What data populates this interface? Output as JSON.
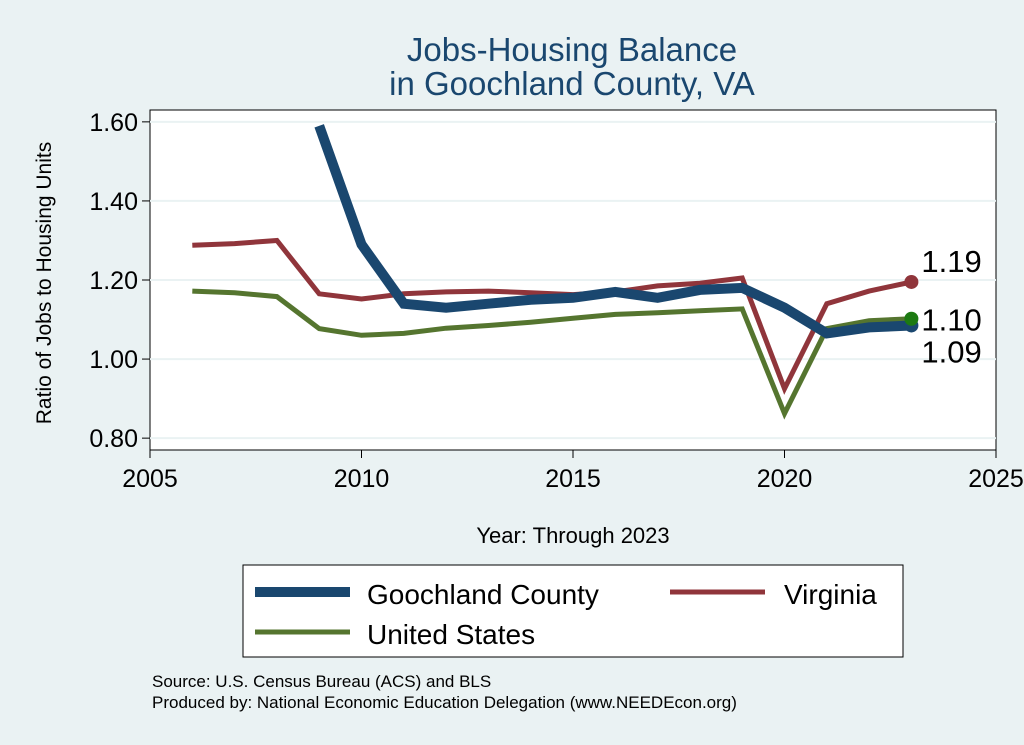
{
  "chart_data": {
    "type": "line",
    "title": [
      "Jobs-Housing Balance",
      "in Goochland County, VA"
    ],
    "xlabel": "Year: Through 2023",
    "ylabel": "Ratio of Jobs to Housing Units",
    "xlim": [
      2005,
      2025
    ],
    "ylim": [
      0.77,
      1.63
    ],
    "x_ticks": [
      2005,
      2010,
      2015,
      2020,
      2025
    ],
    "y_ticks": [
      0.8,
      1.0,
      1.2,
      1.4,
      1.6
    ],
    "y_tick_labels": [
      "0.80",
      "1.00",
      "1.20",
      "1.40",
      "1.60"
    ],
    "grid": true,
    "legend_position": "bottom",
    "series": [
      {
        "name": "Goochland County",
        "color": "#1a476f",
        "x": [
          2009,
          2010,
          2011,
          2012,
          2013,
          2014,
          2015,
          2016,
          2017,
          2018,
          2019,
          2020,
          2021,
          2022,
          2023
        ],
        "y": [
          1.59,
          1.29,
          1.14,
          1.13,
          1.14,
          1.15,
          1.155,
          1.17,
          1.155,
          1.175,
          1.18,
          1.13,
          1.065,
          1.08,
          1.085
        ],
        "end_label": "1.09"
      },
      {
        "name": "Virginia",
        "color": "#90353b",
        "x": [
          2006,
          2007,
          2008,
          2009,
          2010,
          2011,
          2012,
          2013,
          2014,
          2015,
          2016,
          2017,
          2018,
          2019,
          2020,
          2021,
          2022,
          2023
        ],
        "y": [
          1.288,
          1.292,
          1.3,
          1.165,
          1.152,
          1.165,
          1.17,
          1.172,
          1.168,
          1.163,
          1.17,
          1.185,
          1.192,
          1.205,
          0.925,
          1.14,
          1.172,
          1.195
        ],
        "end_label": "1.19"
      },
      {
        "name": "United States",
        "color": "#55752f",
        "x": [
          2006,
          2007,
          2008,
          2009,
          2010,
          2011,
          2012,
          2013,
          2014,
          2015,
          2016,
          2017,
          2018,
          2019,
          2020,
          2021,
          2022,
          2023
        ],
        "y": [
          1.172,
          1.168,
          1.158,
          1.077,
          1.06,
          1.065,
          1.078,
          1.085,
          1.093,
          1.103,
          1.113,
          1.117,
          1.122,
          1.127,
          0.862,
          1.077,
          1.097,
          1.102
        ],
        "end_label": "1.10"
      }
    ],
    "source_lines": [
      "Source: U.S. Census Bureau (ACS) and BLS",
      "Produced by: National Economic Education Delegation (www.NEEDEcon.org)"
    ]
  }
}
